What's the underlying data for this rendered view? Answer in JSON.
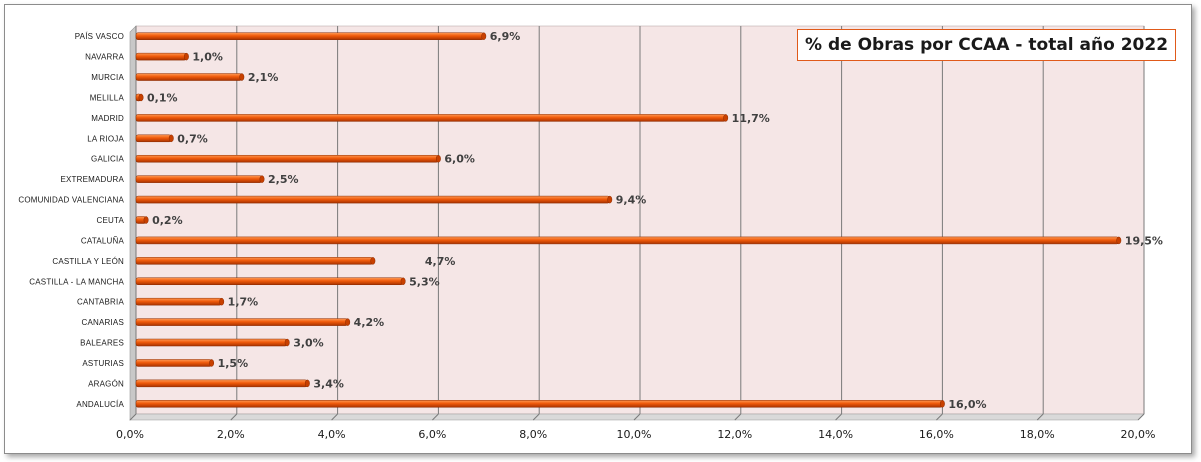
{
  "chart_data": {
    "type": "bar",
    "orientation": "horizontal",
    "title": "% de Obras por CCAA - total año 2022",
    "categories": [
      "PAÍS VASCO",
      "NAVARRA",
      "MURCIA",
      "MELILLA",
      "MADRID",
      "LA RIOJA",
      "GALICIA",
      "EXTREMADURA",
      "COMUNIDAD VALENCIANA",
      "CEUTA",
      "CATALUÑA",
      "CASTILLA Y LEÓN",
      "CASTILLA - LA MANCHA",
      "CANTABRIA",
      "CANARIAS",
      "BALEARES",
      "ASTURIAS",
      "ARAGÓN",
      "ANDALUCÍA"
    ],
    "values": [
      6.9,
      1.0,
      2.1,
      0.1,
      11.7,
      0.7,
      6.0,
      2.5,
      9.4,
      0.2,
      19.5,
      4.7,
      5.3,
      1.7,
      4.2,
      3.0,
      1.5,
      3.4,
      16.0
    ],
    "value_labels": [
      "6,9%",
      "1,0%",
      "2,1%",
      "0,1%",
      "11,7%",
      "0,7%",
      "6,0%",
      "2,5%",
      "9,4%",
      "0,2%",
      "19,5%",
      "4,7%",
      "5,3%",
      "1,7%",
      "4,2%",
      "3,0%",
      "1,5%",
      "3,4%",
      "16,0%"
    ],
    "xlim": [
      0,
      20
    ],
    "x_ticks": [
      "0,0%",
      "2,0%",
      "4,0%",
      "6,0%",
      "8,0%",
      "10,0%",
      "12,0%",
      "14,0%",
      "16,0%",
      "18,0%",
      "20,0%"
    ],
    "xlabel": "",
    "ylabel": "",
    "grid": "vertical",
    "legend": "none",
    "colors": {
      "bar": "#f05a0a",
      "bar_highlight": "#ff9a55",
      "bar_shadow": "#a83200",
      "plot_background": "#f5e6e6",
      "gridline": "#7a7a7a",
      "title_border": "#e05a1a"
    }
  }
}
